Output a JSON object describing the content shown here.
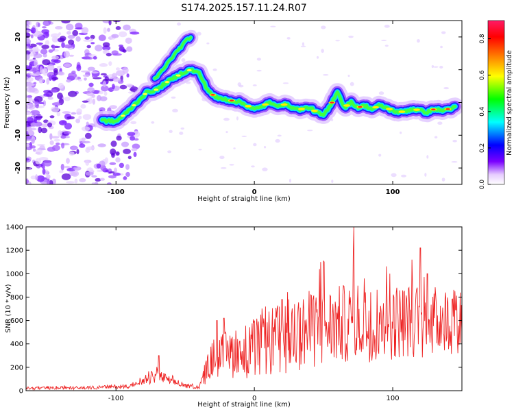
{
  "page_title": "S174.2025.157.11.24.R07",
  "chart_data": [
    {
      "type": "heatmap",
      "xlabel": "Height of straight line (km)",
      "ylabel": "Frequency (Hz)",
      "xlim": [
        -165,
        150
      ],
      "ylim": [
        -25,
        25
      ],
      "xticks": [
        -100,
        0,
        100
      ],
      "yticks": [
        -20,
        -10,
        0,
        10,
        20
      ],
      "colorbar": {
        "label": "Normalized spectral amplitude",
        "range": [
          0.0,
          0.9
        ],
        "ticks": [
          "0.0",
          "0.2",
          "0.4",
          "0.6",
          "0.8"
        ],
        "colors": [
          "#ffffff",
          "#e6ccff",
          "#7a00ff",
          "#0000ff",
          "#00ffff",
          "#00ff00",
          "#ffff00",
          "#ff8000",
          "#ff0000",
          "#ff1a66"
        ]
      },
      "ridge": {
        "x": [
          -110,
          -100,
          -92,
          -85,
          -78,
          -70,
          -64,
          -58,
          -52,
          -46,
          -40,
          -34,
          -28,
          -22,
          -15,
          -10,
          -5,
          0,
          5,
          10,
          15,
          20,
          25,
          30,
          35,
          40,
          45,
          50,
          55,
          60,
          65,
          70,
          75,
          80,
          85,
          90,
          95,
          100,
          105,
          110,
          115,
          120,
          125,
          130,
          135,
          140,
          145
        ],
        "y": [
          -5.5,
          -5.8,
          -3,
          0,
          3,
          4,
          6,
          7.5,
          9,
          10,
          9,
          4,
          1.5,
          1,
          0.5,
          0,
          -1,
          -2,
          -1.5,
          0,
          -1,
          -0.5,
          -1,
          -2,
          -2,
          -1.5,
          -3,
          -4,
          -1,
          3.5,
          -1.5,
          0,
          -1.5,
          -1,
          -2,
          -1,
          -1.5,
          -2.5,
          -3,
          -2.5,
          -2,
          -2.5,
          -3,
          -2,
          -2.5,
          -2,
          -1.5
        ]
      },
      "upper_branch": {
        "x": [
          -72,
          -66,
          -60,
          -55,
          -50,
          -46
        ],
        "y": [
          7,
          10,
          13.5,
          16,
          18.5,
          20
        ]
      }
    },
    {
      "type": "line",
      "xlabel": "Height of straight line (km)",
      "ylabel": "SNR (10 * v/v)",
      "xlim": [
        -165,
        150
      ],
      "ylim": [
        0,
        1400
      ],
      "xticks": [
        -100,
        0,
        100
      ],
      "yticks": [
        0,
        200,
        400,
        600,
        800,
        1000,
        1200,
        1400
      ],
      "color": "#ee2222",
      "envelope": {
        "x": [
          -165,
          -120,
          -90,
          -80,
          -70,
          -60,
          -50,
          -40,
          -35,
          -30,
          -20,
          -10,
          0,
          10,
          20,
          30,
          40,
          50,
          60,
          70,
          80,
          90,
          100,
          110,
          120,
          130,
          140,
          150
        ],
        "mean": [
          20,
          25,
          40,
          70,
          130,
          80,
          40,
          30,
          160,
          280,
          310,
          330,
          360,
          400,
          450,
          490,
          520,
          540,
          560,
          580,
          580,
          590,
          590,
          600,
          600,
          600,
          600,
          620
        ],
        "spread": [
          12,
          14,
          18,
          35,
          60,
          35,
          18,
          15,
          100,
          170,
          200,
          230,
          260,
          290,
          320,
          330,
          340,
          340,
          340,
          340,
          340,
          340,
          330,
          320,
          320,
          300,
          300,
          300
        ]
      },
      "spikes": [
        {
          "x": -69,
          "y": 300
        },
        {
          "x": -27,
          "y": 600
        },
        {
          "x": -22,
          "y": 620
        },
        {
          "x": 20,
          "y": 780
        },
        {
          "x": 48,
          "y": 1100
        },
        {
          "x": 50,
          "y": 1110
        },
        {
          "x": 72,
          "y": 1400
        },
        {
          "x": 98,
          "y": 1000
        },
        {
          "x": 120,
          "y": 1220
        },
        {
          "x": 125,
          "y": 1000
        },
        {
          "x": 145,
          "y": 850
        }
      ]
    }
  ]
}
